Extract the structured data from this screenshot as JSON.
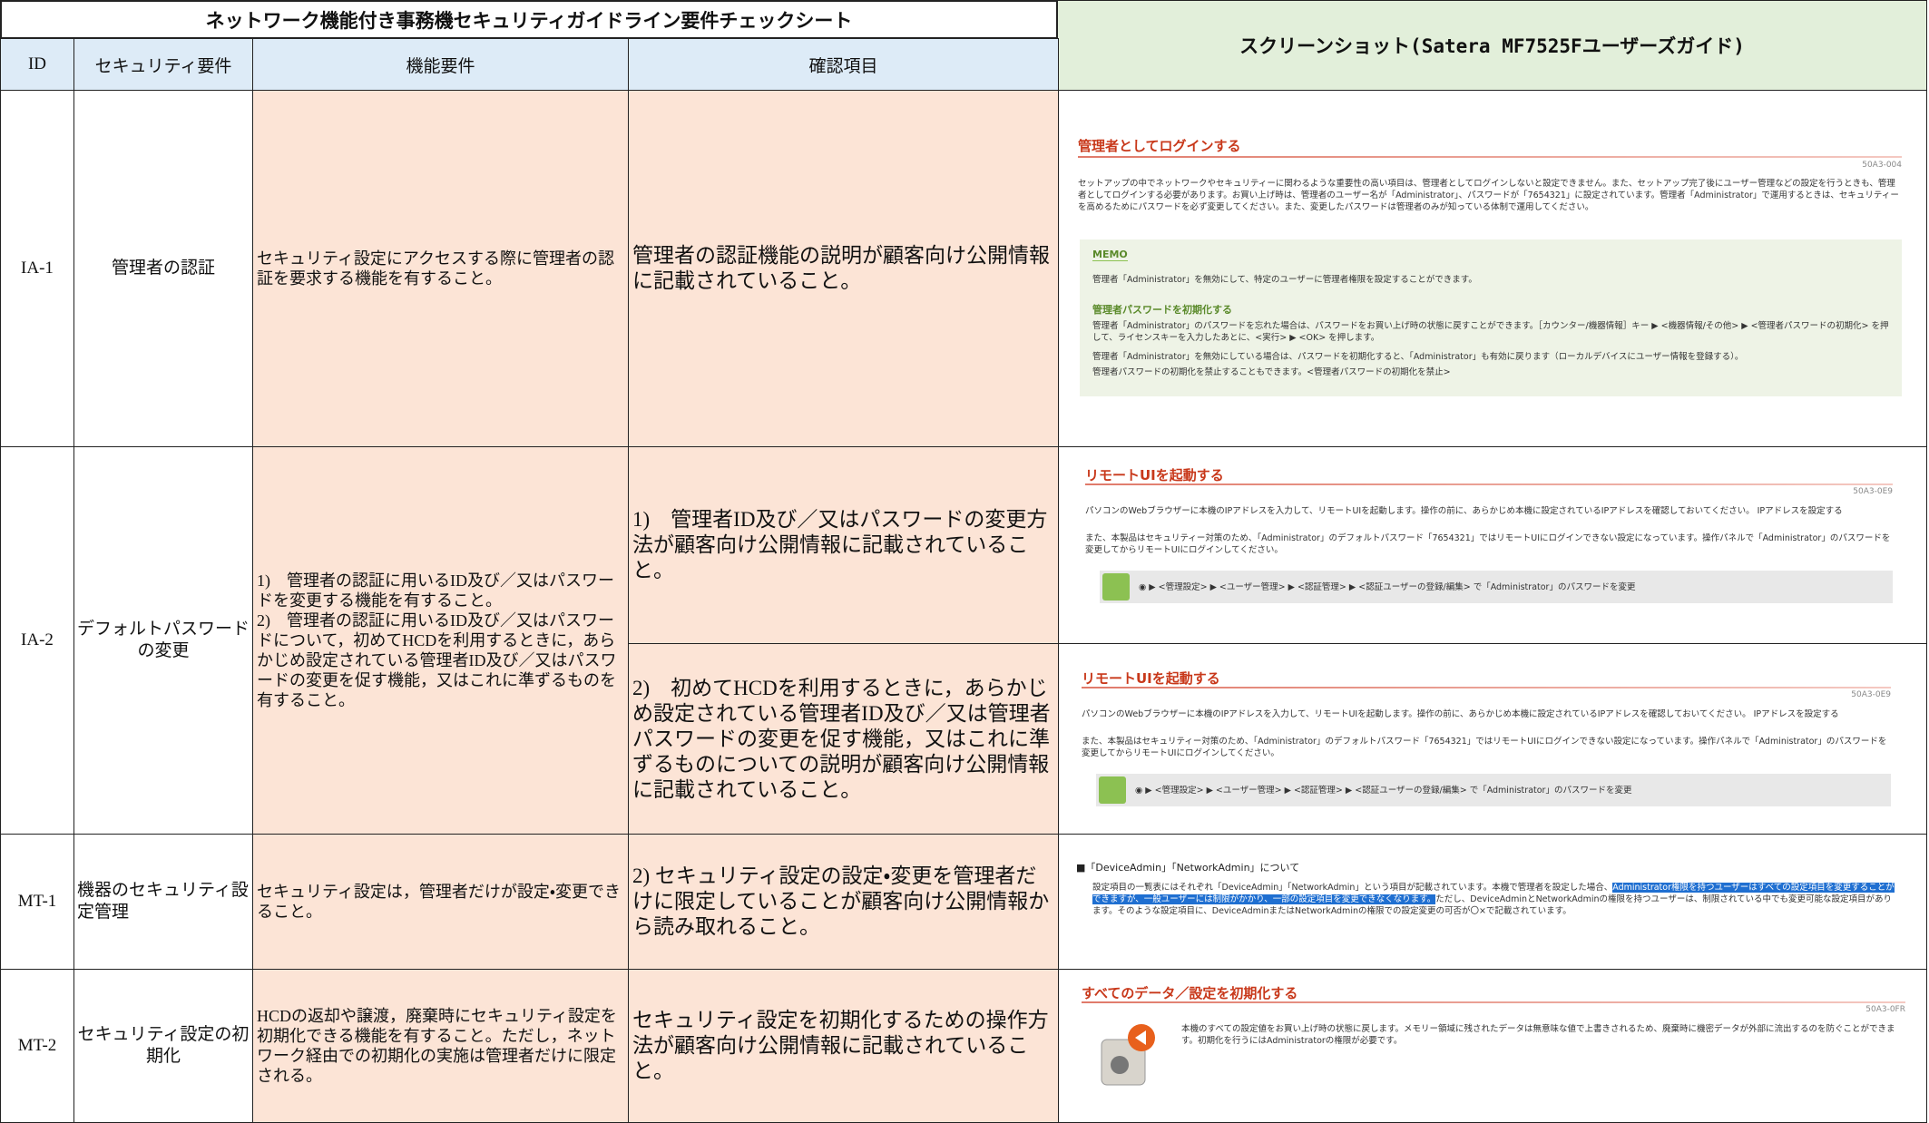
{
  "header": {
    "title": "ネットワーク機能付き事務機セキュリティガイドライン要件チェックシート",
    "screenshot_title": "スクリーンショット(Satera MF7525Fユーザーズガイド)",
    "columns": [
      "ID",
      "セキュリティ要件",
      "機能要件",
      "確認項目"
    ]
  },
  "rows": [
    {
      "id": "IA-1",
      "requirement": "管理者の認証",
      "function": "セキュリティ設定にアクセスする際に管理者の認証を要求する機能を有すること。",
      "checks": [
        "管理者の認証機能の説明が顧客向け公開情報に記載されていること。"
      ]
    },
    {
      "id": "IA-2",
      "requirement": "デフォルトパスワードの変更",
      "function": "1)　管理者の認証に用いるID及び／又はパスワードを変更する機能を有すること。\n2)　管理者の認証に用いるID及び／又はパスワードについて，初めてHCDを利用するときに，あらかじめ設定されている管理者ID及び／又はパスワードの変更を促す機能，又はこれに準ずるものを有すること。",
      "checks": [
        "1)　管理者ID及び／又はパスワードの変更方法が顧客向け公開情報に記載されていること。",
        "2)　初めてHCDを利用するときに，あらかじめ設定されている管理者ID及び／又は管理者パスワードの変更を促す機能，又はこれに準ずるものについての説明が顧客向け公開情報に記載されていること。"
      ]
    },
    {
      "id": "MT-1",
      "requirement": "機器のセキュリティ設定管理",
      "function": "セキュリティ設定は，管理者だけが設定・変更できること。",
      "checks": [
        "2) セキュリティ設定の設定・変更を管理者だけに限定していることが顧客向け公開情報から読み取れること。"
      ]
    },
    {
      "id": "MT-2",
      "requirement": "セキュリティ設定の初期化",
      "function": "HCDの返却や譲渡，廃棄時にセキュリティ設定を初期化できる機能を有すること。ただし，ネットワーク経由での初期化の実施は管理者だけに限定される。",
      "checks": [
        "セキュリティ設定を初期化するための操作方法が顧客向け公開情報に記載されていること。"
      ]
    }
  ],
  "screenshots": [
    {
      "title": "管理者としてログインする",
      "code": "50A3-004",
      "text": "セットアップの中でネットワークやセキュリティーに関わるような重要性の高い項目は、管理者としてログインしないと設定できません。また、セットアップ完了後にユーザー管理などの設定を行うときも、管理者としてログインする必要があります。お買い上げ時は、管理者のユーザー名が「Administrator」、パスワードが「7654321」に設定されています。管理者「Administrator」で運用するときは、セキュリティーを高めるためにパスワードを必ず変更してください。また、変更したパスワードは管理者のみが知っている体制で運用してください。",
      "memo": "MEMO",
      "memo_items": [
        "管理者「Administrator」を無効にして、特定のユーザーに管理者権限を設定することができます。"
      ],
      "subheading": "管理者パスワードを初期化する",
      "subtext": "管理者「Administrator」のパスワードを忘れた場合は、パスワードをお買い上げ時の状態に戻すことができます。［カウンター/機器情報］キー ▶ <機器情報/その他> ▶ <管理者パスワードの初期化> を押して、ライセンスキーを入力したあとに、<実行> ▶ <OK> を押します。",
      "sub_items": [
        "管理者「Administrator」を無効にしている場合は、パスワードを初期化すると、「Administrator」も有効に戻ります（ローカルデバイスにユーザー情報を登録する）。",
        "管理者パスワードの初期化を禁止することもできます。<管理者パスワードの初期化を禁止>"
      ]
    },
    {
      "title": "リモートUIを起動する",
      "code": "50A3-0E9",
      "text": "パソコンのWebブラウザーに本機のIPアドレスを入力して、リモートUIを起動します。操作の前に、あらかじめ本機に設定されているIPアドレスを確認しておいてください。 IPアドレスを設定する",
      "text2": "また、本製品はセキュリティー対策のため、「Administrator」のデフォルトパスワード「7654321」ではリモートUIにログインできない設定になっています。操作パネルで「Administrator」のパスワードを変更してからリモートUIにログインしてください。",
      "steps": "◉ ▶ <管理設定> ▶ <ユーザー管理> ▶ <認証管理> ▶ <認証ユーザーの登録/編集> で「Administrator」のパスワードを変更"
    },
    {
      "title": "リモートUIを起動する",
      "code": "50A3-0E9",
      "text": "パソコンのWebブラウザーに本機のIPアドレスを入力して、リモートUIを起動します。操作の前に、あらかじめ本機に設定されているIPアドレスを確認しておいてください。 IPアドレスを設定する",
      "text2": "また、本製品はセキュリティー対策のため、「Administrator」のデフォルトパスワード「7654321」ではリモートUIにログインできない設定になっています。操作パネルで「Administrator」のパスワードを変更してからリモートUIにログインしてください。",
      "steps": "◉ ▶ <管理設定> ▶ <ユーザー管理> ▶ <認証管理> ▶ <認証ユーザーの登録/編集> で「Administrator」のパスワードを変更"
    },
    {
      "title": "■「DeviceAdmin」「NetworkAdmin」について",
      "text": "設定項目の一覧表にはそれぞれ「DeviceAdmin」「NetworkAdmin」という項目が記載されています。本機で管理者を設定した場合、",
      "highlight": "Administrator権限を持つユーザーはすべての設定項目を変更することができますが、一般ユーザーには制限がかかり、一部の設定項目を変更できなくなります。",
      "text2": "ただし、DeviceAdminとNetworkAdminの権限を持つユーザーは、制限されている中でも変更可能な設定項目があります。そのような設定項目に、DeviceAdminまたはNetworkAdminの権限での設定変更の可否が〇×で記載されています。"
    },
    {
      "title": "すべてのデータ／設定を初期化する",
      "code": "50A3-0FR",
      "text": "本機のすべての設定値をお買い上げ時の状態に戻します。メモリー領域に残されたデータは無意味な値で上書きされるため、廃棄時に機密データが外部に流出するのを防ぐことができます。初期化を行うにはAdministratorの権限が必要です。"
    }
  ]
}
